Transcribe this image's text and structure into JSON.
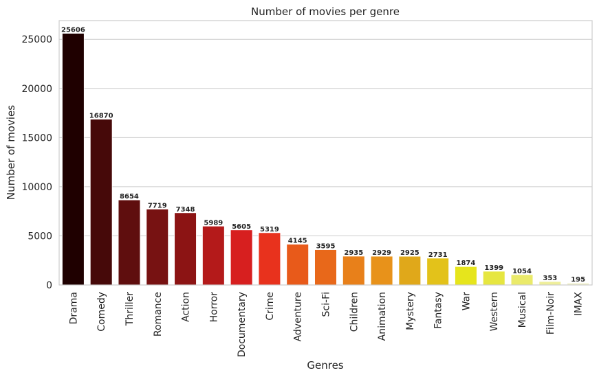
{
  "chart_data": {
    "type": "bar",
    "title": "Number of movies per genre",
    "xlabel": "Genres",
    "ylabel": "Number of movies",
    "categories": [
      "Drama",
      "Comedy",
      "Thriller",
      "Romance",
      "Action",
      "Horror",
      "Documentary",
      "Crime",
      "Adventure",
      "Sci-Fi",
      "Children",
      "Animation",
      "Mystery",
      "Fantasy",
      "War",
      "Western",
      "Musical",
      "Film-Noir",
      "IMAX"
    ],
    "values": [
      25606,
      16870,
      8654,
      7719,
      7348,
      5989,
      5605,
      5319,
      4145,
      3595,
      2935,
      2929,
      2925,
      2731,
      1874,
      1399,
      1054,
      353,
      195
    ],
    "colors": [
      "#1f0000",
      "#460909",
      "#5f0e0e",
      "#771212",
      "#8c1414",
      "#b41a1a",
      "#d71f1f",
      "#e8321d",
      "#e85a1a",
      "#e8681a",
      "#e8801a",
      "#e8921a",
      "#e0a81a",
      "#e3c21a",
      "#e6e51c",
      "#e6e640",
      "#eaea6a",
      "#eeee9a",
      "#f0f0c8"
    ],
    "yticks": [
      0,
      5000,
      10000,
      15000,
      20000,
      25000
    ],
    "ylim": [
      0,
      26900
    ],
    "grid": "horizontal"
  }
}
